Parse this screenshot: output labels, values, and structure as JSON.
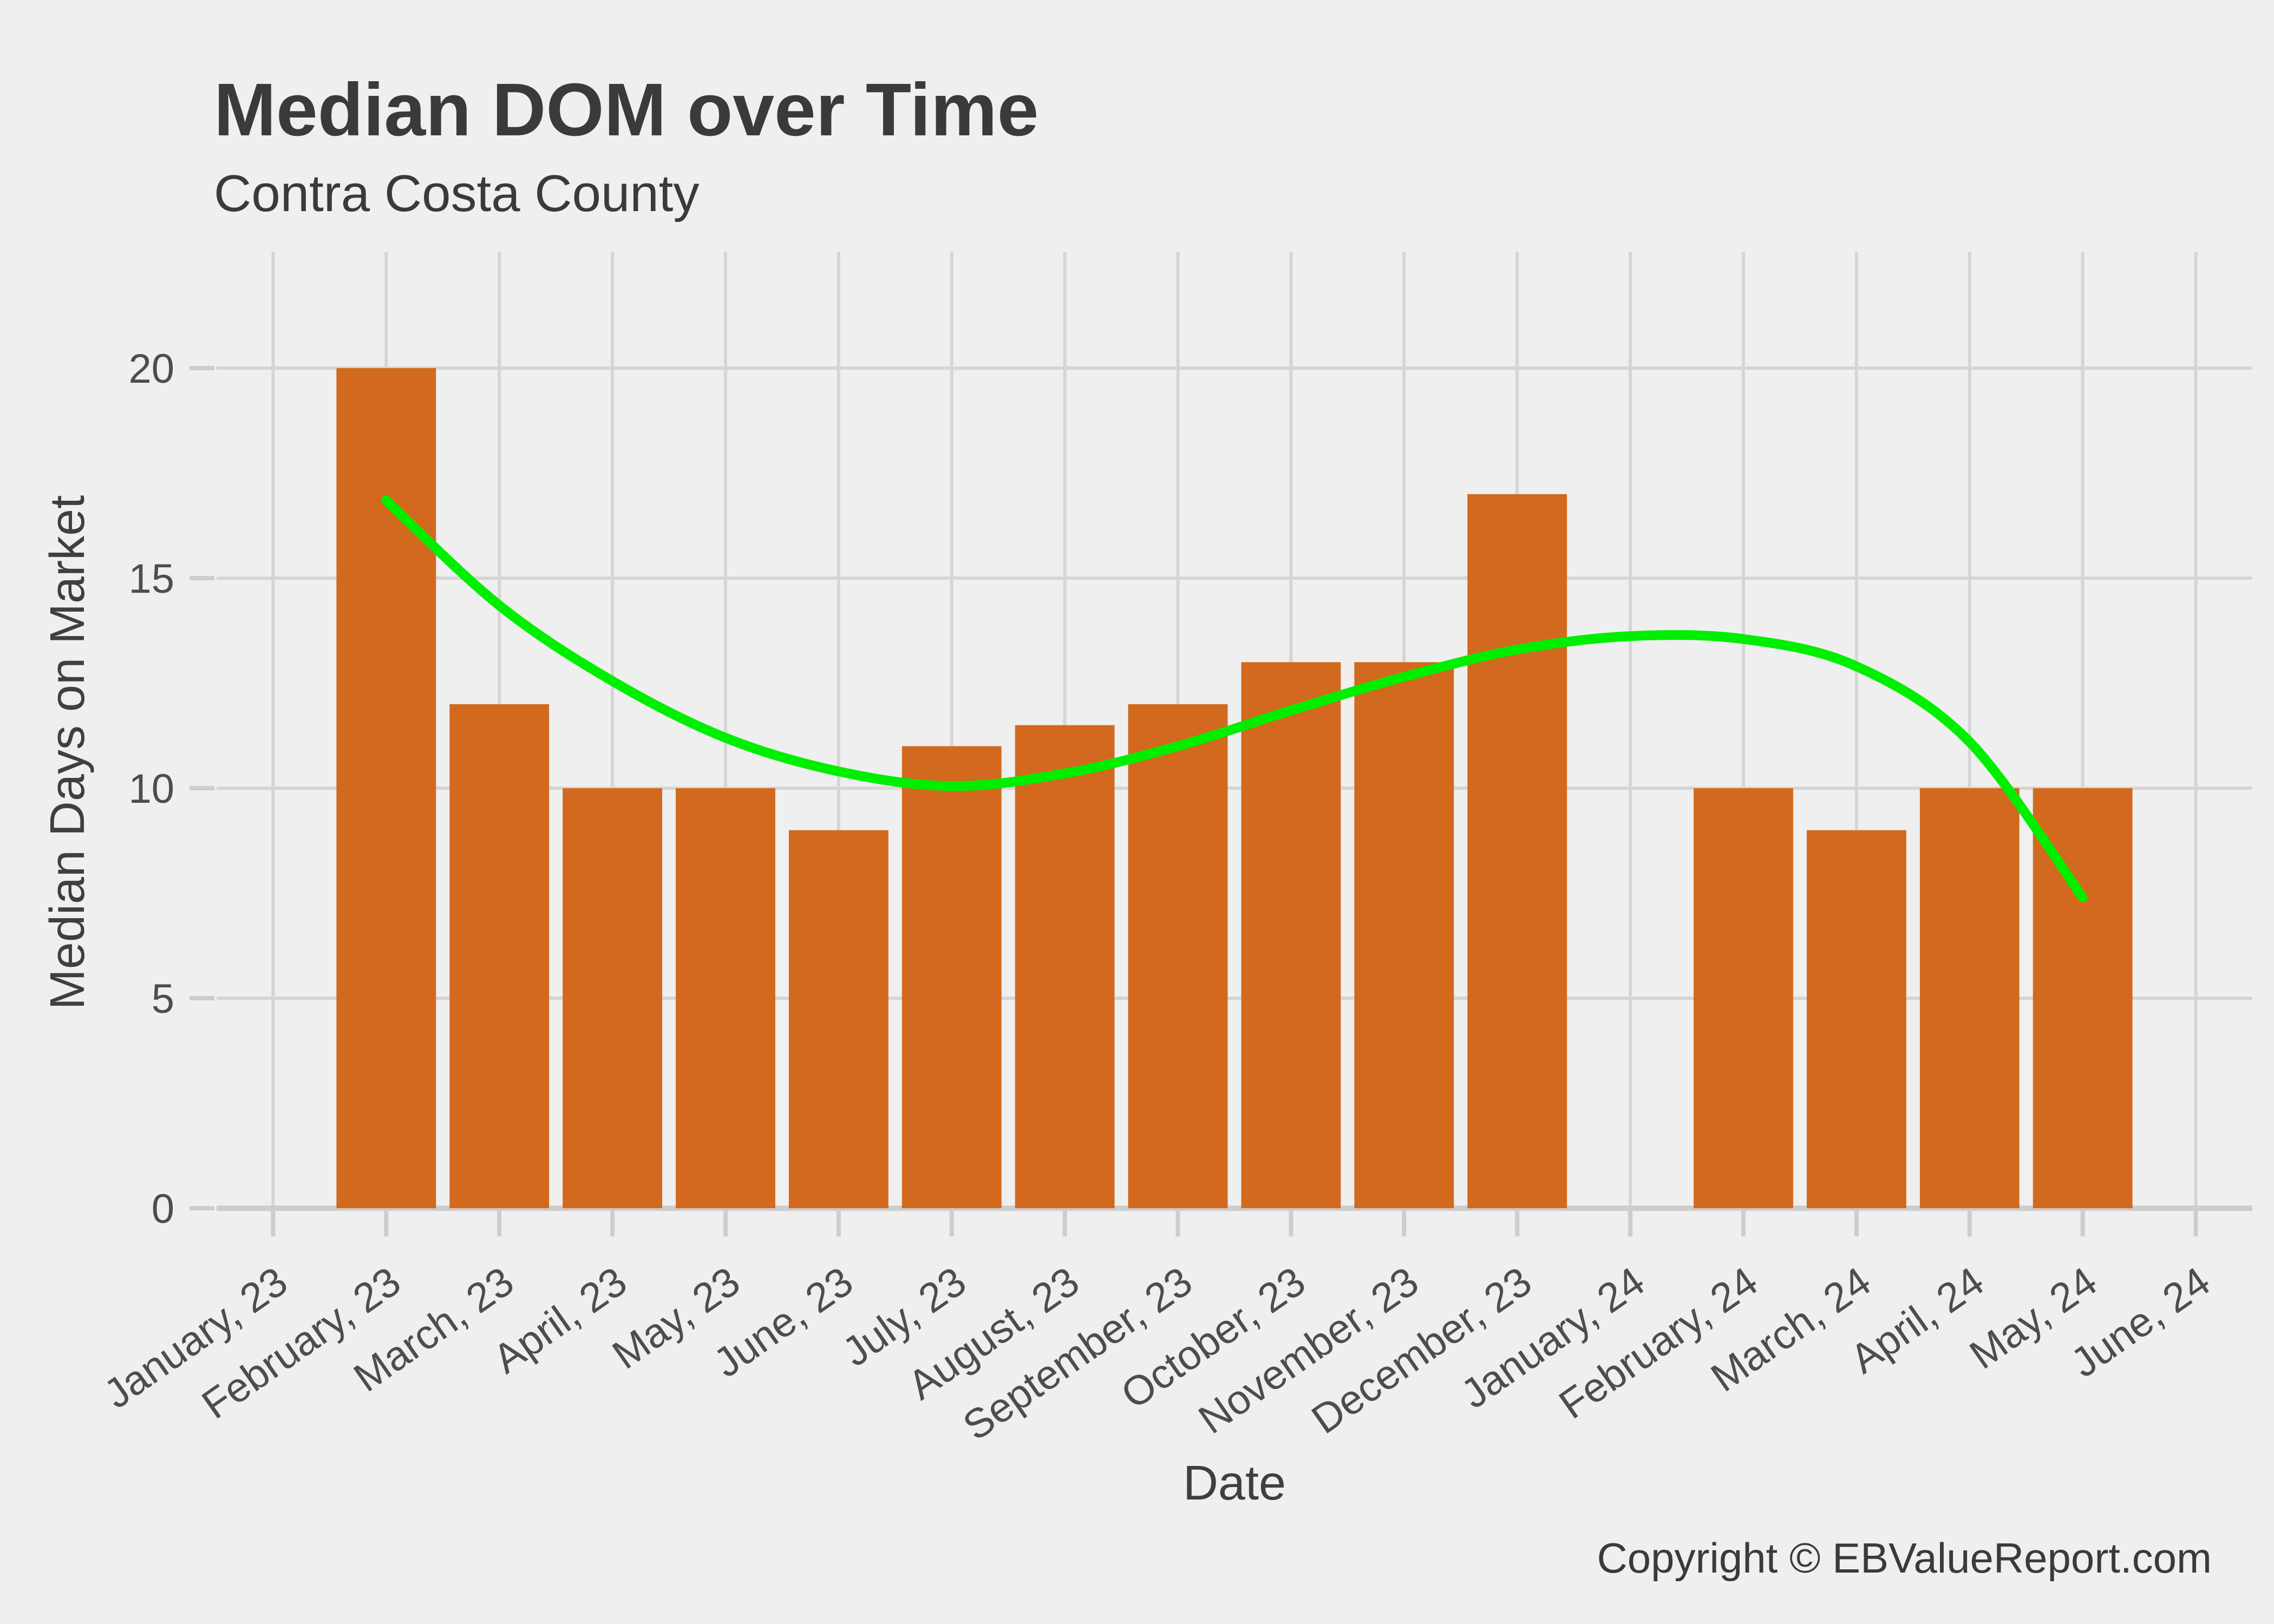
{
  "header": {
    "title": "Median DOM over Time",
    "subtitle": "Contra Costa County"
  },
  "footer": {
    "copyright": "Copyright © EBValueReport.com"
  },
  "chart_data": {
    "type": "bar",
    "title": "Median DOM over Time",
    "subtitle": "Contra Costa County",
    "xlabel": "Date",
    "ylabel": "Median Days on Market",
    "categories": [
      "January, 23",
      "February, 23",
      "March, 23",
      "April, 23",
      "May, 23",
      "June, 23",
      "July, 23",
      "August, 23",
      "September, 23",
      "October, 23",
      "November, 23",
      "December, 23",
      "January, 24",
      "February, 24",
      "March, 24",
      "April, 24",
      "May, 24",
      "June, 24"
    ],
    "values": [
      null,
      20,
      12,
      10,
      10,
      9,
      11,
      11.5,
      12,
      13,
      13,
      17,
      null,
      10,
      9,
      10,
      10,
      null
    ],
    "yticks": [
      0,
      5,
      10,
      15,
      20
    ],
    "ylim": [
      0,
      22.8
    ],
    "grid": true,
    "legend_position": "none",
    "smooth_line": {
      "name": "loess-trend",
      "points": [
        {
          "i": 1,
          "v": 16.85
        },
        {
          "i": 2,
          "v": 14.35
        },
        {
          "i": 3,
          "v": 12.55
        },
        {
          "i": 4,
          "v": 11.2
        },
        {
          "i": 5,
          "v": 10.4
        },
        {
          "i": 6,
          "v": 10.05
        },
        {
          "i": 7,
          "v": 10.35
        },
        {
          "i": 8,
          "v": 11.0
        },
        {
          "i": 9,
          "v": 11.85
        },
        {
          "i": 10,
          "v": 12.65
        },
        {
          "i": 11,
          "v": 13.3
        },
        {
          "i": 12,
          "v": 13.62
        },
        {
          "i": 13,
          "v": 13.55
        },
        {
          "i": 14,
          "v": 12.9
        },
        {
          "i": 15,
          "v": 11.1
        },
        {
          "i": 16,
          "v": 7.4
        }
      ]
    },
    "colors": {
      "bar": "#D2691E",
      "smooth": "#00EE00",
      "background": "#EFEFEF",
      "grid": "#D5D5D5",
      "axis": "#CDCDCD",
      "tick_text": "#4D4D4D",
      "title_text": "#3A3A3A"
    }
  }
}
